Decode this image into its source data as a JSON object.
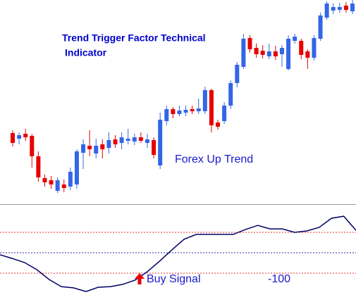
{
  "chart_data": [
    {
      "type": "candlestick",
      "title_lines": [
        "Trend Trigger Factor Technical",
        "Indicator"
      ],
      "annotation": "Forex Up Trend",
      "up_color": "#3366e6",
      "down_color": "#e60000",
      "ylim": [
        0,
        290
      ],
      "open": [
        101,
        93,
        100,
        97,
        68,
        37,
        34,
        19,
        28,
        25,
        28,
        73,
        83,
        72,
        85,
        80,
        92,
        87,
        90,
        89,
        95,
        87,
        91,
        55,
        118,
        135,
        128,
        130,
        135,
        132,
        132,
        162,
        116,
        118,
        140,
        172,
        195,
        236,
        222,
        218,
        210,
        217,
        213,
        192,
        232,
        232,
        217,
        208,
        235,
        265,
        275,
        276,
        282,
        274
      ],
      "high": [
        105,
        102,
        107,
        100,
        75,
        42,
        40,
        38,
        35,
        52,
        78,
        92,
        105,
        93,
        92,
        102,
        98,
        102,
        107,
        100,
        102,
        100,
        95,
        130,
        140,
        138,
        140,
        140,
        140,
        150,
        167,
        164,
        120,
        145,
        176,
        202,
        242,
        240,
        228,
        226,
        228,
        225,
        226,
        240,
        242,
        235,
        220,
        240,
        272,
        288,
        285,
        286,
        287,
        290
      ],
      "low": [
        82,
        85,
        90,
        52,
        32,
        25,
        22,
        16,
        17,
        20,
        22,
        50,
        68,
        65,
        65,
        72,
        80,
        78,
        85,
        84,
        87,
        80,
        65,
        50,
        112,
        122,
        125,
        125,
        128,
        128,
        128,
        102,
        106,
        114,
        135,
        166,
        192,
        215,
        208,
        207,
        206,
        205,
        195,
        190,
        228,
        206,
        192,
        204,
        232,
        262,
        270,
        272,
        272,
        270
      ],
      "close": [
        87,
        98,
        95,
        68,
        38,
        31,
        28,
        34,
        23,
        46,
        75,
        85,
        78,
        83,
        78,
        91,
        85,
        95,
        93,
        95,
        90,
        92,
        70,
        120,
        135,
        128,
        133,
        134,
        132,
        136,
        162,
        112,
        110,
        140,
        172,
        198,
        235,
        220,
        213,
        212,
        217,
        210,
        222,
        235,
        238,
        212,
        208,
        236,
        268,
        285,
        280,
        280,
        276,
        285
      ]
    },
    {
      "type": "line",
      "annotation": "Buy Signal",
      "color": "#000066",
      "ylim": [
        -207,
        231
      ],
      "levels": [
        100,
        0,
        -100
      ],
      "level_colors": [
        "#e03030",
        "#3030a0",
        "#e03030"
      ],
      "values": [
        -10,
        -28,
        -48,
        -83,
        -131,
        -166,
        -172,
        -190,
        -169,
        -166,
        -155,
        -134,
        -93,
        -41,
        14,
        66,
        90,
        90,
        90,
        90,
        114,
        134,
        117,
        117,
        100,
        107,
        124,
        169,
        179,
        110
      ]
    }
  ]
}
